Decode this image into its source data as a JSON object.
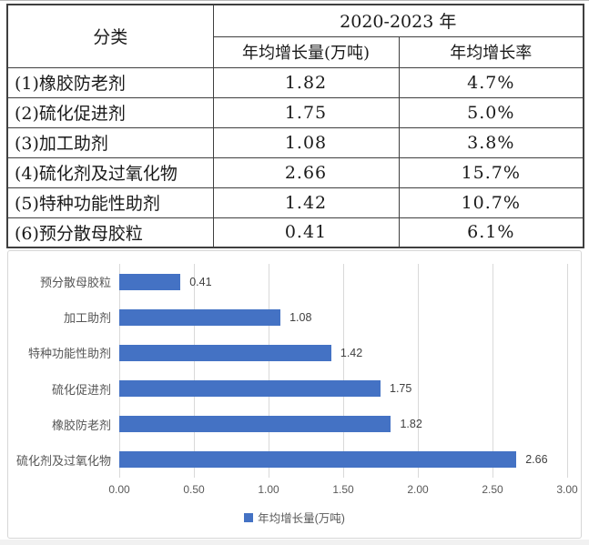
{
  "table": {
    "col1_header": "分类",
    "year_header": "2020-2023 年",
    "sub_headers": [
      "年均增长量(万吨)",
      "年均增长率"
    ],
    "rows": [
      {
        "category": "(1)橡胶防老剂",
        "growth_amount": "1.82",
        "growth_rate": "4.7%"
      },
      {
        "category": "(2)硫化促进剂",
        "growth_amount": "1.75",
        "growth_rate": "5.0%"
      },
      {
        "category": "(3)加工助剂",
        "growth_amount": "1.08",
        "growth_rate": "3.8%"
      },
      {
        "category": "(4)硫化剂及过氧化物",
        "growth_amount": "2.66",
        "growth_rate": "15.7%"
      },
      {
        "category": "(5)特种功能性助剂",
        "growth_amount": "1.42",
        "growth_rate": "10.7%"
      },
      {
        "category": "(6)预分散母胶粒",
        "growth_amount": "0.41",
        "growth_rate": "6.1%"
      }
    ]
  },
  "chart_data": {
    "type": "bar",
    "orientation": "horizontal",
    "categories": [
      "预分散母胶粒",
      "加工助剂",
      "特种功能性助剂",
      "硫化促进剂",
      "橡胶防老剂",
      "硫化剂及过氧化物"
    ],
    "values": [
      0.41,
      1.08,
      1.42,
      1.75,
      1.82,
      2.66
    ],
    "value_labels": [
      "0.41",
      "1.08",
      "1.42",
      "1.75",
      "1.82",
      "2.66"
    ],
    "x_ticks": [
      "0.00",
      "0.50",
      "1.00",
      "1.50",
      "2.00",
      "2.50",
      "3.00"
    ],
    "xlim": [
      0,
      3.0
    ],
    "grid": true,
    "legend": "年均增长量(万吨)",
    "legend_position": "bottom",
    "bar_color": "#4472C4",
    "gridline_color": "#d9d9d9"
  }
}
